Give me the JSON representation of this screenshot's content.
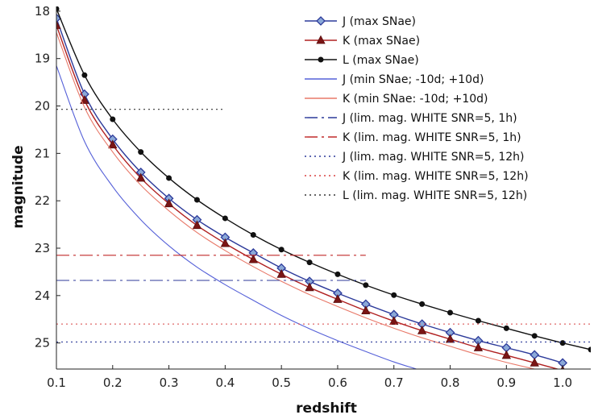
{
  "chart_data": {
    "type": "line",
    "xlabel": "redshift",
    "ylabel": "magnitude",
    "xlim": [
      0.1,
      1.05
    ],
    "ylim": [
      25.55,
      17.9
    ],
    "y_inverted": true,
    "x_ticks": [
      0.1,
      0.2,
      0.3,
      0.4,
      0.5,
      0.6,
      0.7,
      0.8,
      0.9,
      1.0
    ],
    "x_tick_labels": [
      "0.1",
      "0.2",
      "0.3",
      "0.4",
      "0.5",
      "0.6",
      "0.7",
      "0.8",
      "0.9",
      "1.0"
    ],
    "y_ticks": [
      18,
      19,
      20,
      21,
      22,
      23,
      24,
      25
    ],
    "y_tick_labels": [
      "18",
      "19",
      "20",
      "21",
      "22",
      "23",
      "24",
      "25"
    ],
    "grid": false,
    "legend_position": "top-right",
    "series": [
      {
        "name": "J  (max SNae)",
        "color": "#2c3a9a",
        "marker": "diamond",
        "marker_fill": "#8aa8d8",
        "line_style": "solid",
        "x": [
          0.1,
          0.15,
          0.2,
          0.25,
          0.3,
          0.35,
          0.4,
          0.45,
          0.5,
          0.55,
          0.6,
          0.65,
          0.7,
          0.75,
          0.8,
          0.85,
          0.9,
          0.95,
          1.0
        ],
        "y": [
          18.15,
          19.75,
          20.7,
          21.4,
          21.95,
          22.4,
          22.77,
          23.1,
          23.42,
          23.7,
          23.95,
          24.18,
          24.4,
          24.6,
          24.78,
          24.95,
          25.1,
          25.25,
          25.42
        ]
      },
      {
        "name": "K (max SNae)",
        "color": "#b02020",
        "marker": "triangle",
        "marker_fill": "#7a1515",
        "line_style": "solid",
        "x": [
          0.1,
          0.15,
          0.2,
          0.25,
          0.3,
          0.35,
          0.4,
          0.45,
          0.5,
          0.55,
          0.6,
          0.65,
          0.7,
          0.75,
          0.8,
          0.85,
          0.9,
          0.95,
          1.0
        ],
        "y": [
          18.3,
          19.88,
          20.82,
          21.52,
          22.06,
          22.52,
          22.9,
          23.24,
          23.55,
          23.83,
          24.08,
          24.32,
          24.54,
          24.74,
          24.92,
          25.1,
          25.26,
          25.42,
          25.58
        ]
      },
      {
        "name": "L (max SNae)",
        "color": "#111111",
        "marker": "circle",
        "marker_fill": "#111111",
        "line_style": "solid",
        "x": [
          0.1,
          0.15,
          0.2,
          0.25,
          0.3,
          0.35,
          0.4,
          0.45,
          0.5,
          0.55,
          0.6,
          0.65,
          0.7,
          0.75,
          0.8,
          0.85,
          0.9,
          0.95,
          1.0,
          1.05
        ],
        "y": [
          17.95,
          19.35,
          20.28,
          20.97,
          21.52,
          21.98,
          22.37,
          22.72,
          23.03,
          23.3,
          23.55,
          23.78,
          23.99,
          24.18,
          24.36,
          24.53,
          24.69,
          24.85,
          25.0,
          25.14
        ]
      },
      {
        "name": "J  (min SNae; -10d; +10d)",
        "color": "#5560d8",
        "marker": "none",
        "line_style": "solid",
        "x": [
          0.1,
          0.15,
          0.2,
          0.25,
          0.3,
          0.35,
          0.4,
          0.45,
          0.5,
          0.55,
          0.6,
          0.65,
          0.7,
          0.74
        ],
        "y": [
          19.15,
          20.75,
          21.7,
          22.4,
          22.95,
          23.4,
          23.77,
          24.1,
          24.42,
          24.7,
          24.95,
          25.18,
          25.4,
          25.55
        ]
      },
      {
        "name": "K (min SNae: -10d; +10d)",
        "color": "#e87868",
        "marker": "none",
        "line_style": "solid",
        "x": [
          0.1,
          0.15,
          0.2,
          0.25,
          0.3,
          0.35,
          0.4,
          0.45,
          0.5,
          0.55,
          0.6,
          0.65,
          0.7,
          0.75,
          0.8,
          0.85,
          0.9,
          0.95
        ],
        "y": [
          18.45,
          20.03,
          20.97,
          21.67,
          22.21,
          22.67,
          23.05,
          23.39,
          23.7,
          23.98,
          24.23,
          24.47,
          24.69,
          24.89,
          25.07,
          25.25,
          25.41,
          25.55
        ]
      },
      {
        "name": "J  (lim. mag. WHITE SNR=5, 1h)",
        "color": "#2c3a9a",
        "marker": "none",
        "line_style": "dashdot",
        "x": [
          0.1,
          0.65
        ],
        "y": [
          23.68,
          23.68
        ]
      },
      {
        "name": "K (lim. mag. WHITE SNR=5, 1h)",
        "color": "#c02a2a",
        "marker": "none",
        "line_style": "dashdot",
        "x": [
          0.1,
          0.65
        ],
        "y": [
          23.15,
          23.15
        ]
      },
      {
        "name": "J  (lim. mag. WHITE SNR=5, 12h)",
        "color": "#2c3a9a",
        "marker": "none",
        "line_style": "dotted",
        "x": [
          0.1,
          1.05
        ],
        "y": [
          24.98,
          24.98
        ]
      },
      {
        "name": "K (lim. mag. WHITE SNR=5, 12h)",
        "color": "#d84040",
        "marker": "none",
        "line_style": "dotted",
        "x": [
          0.1,
          1.05
        ],
        "y": [
          24.6,
          24.6
        ]
      },
      {
        "name": "L (lim. mag. WHITE SNR=5, 12h)",
        "color": "#333333",
        "marker": "none",
        "line_style": "dotted",
        "x": [
          0.1,
          0.4
        ],
        "y": [
          20.07,
          20.07
        ]
      }
    ]
  }
}
